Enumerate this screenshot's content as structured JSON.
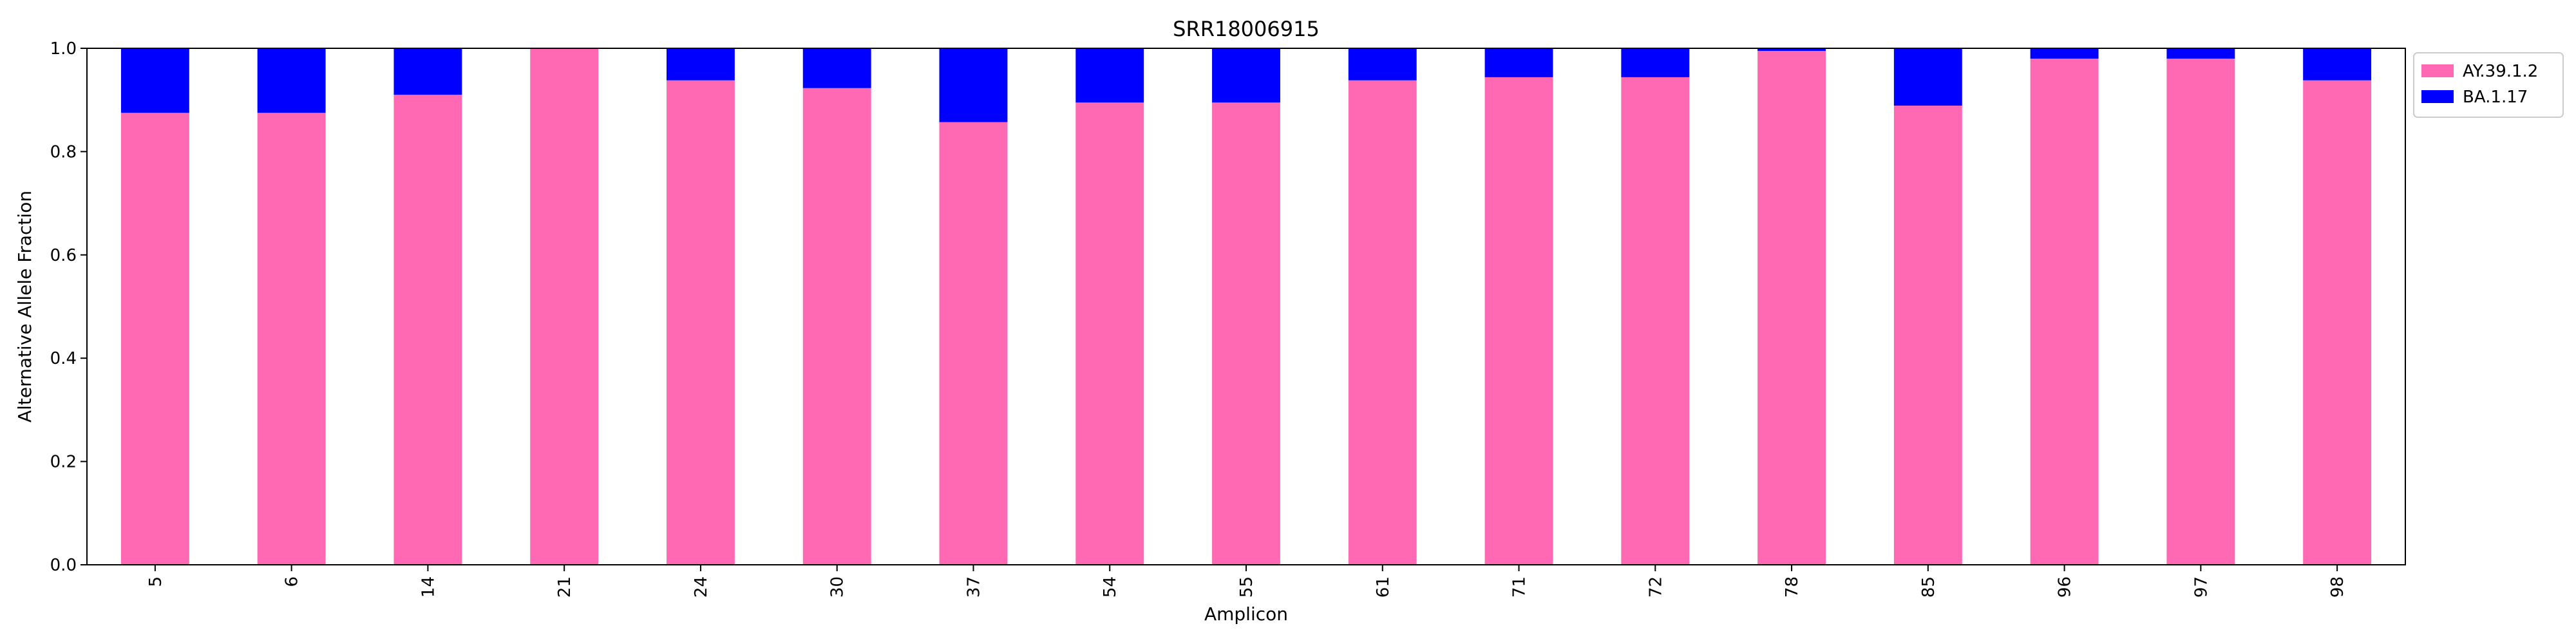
{
  "chart_data": {
    "type": "bar",
    "stacked": true,
    "title": "SRR18006915",
    "xlabel": "Amplicon",
    "ylabel": "Alternative Allele Fraction",
    "ylim": [
      0,
      1.0
    ],
    "yticks": [
      "0.0",
      "0.2",
      "0.4",
      "0.6",
      "0.8",
      "1.0"
    ],
    "categories": [
      "5",
      "6",
      "14",
      "21",
      "24",
      "30",
      "37",
      "54",
      "55",
      "61",
      "71",
      "72",
      "78",
      "85",
      "96",
      "97",
      "98"
    ],
    "series": [
      {
        "name": "AY.39.1.2",
        "color": "#ff69b4",
        "values": [
          0.875,
          0.875,
          0.91,
          1.0,
          0.938,
          0.923,
          0.857,
          0.895,
          0.895,
          0.938,
          0.944,
          0.944,
          0.995,
          0.889,
          0.98,
          0.98,
          0.938
        ]
      },
      {
        "name": "BA.1.17",
        "color": "#0000ff",
        "values": [
          0.125,
          0.125,
          0.09,
          0.0,
          0.062,
          0.077,
          0.143,
          0.105,
          0.105,
          0.062,
          0.056,
          0.056,
          0.005,
          0.111,
          0.02,
          0.02,
          0.062
        ]
      }
    ],
    "grid": false,
    "legend_position": "outside top-right"
  }
}
